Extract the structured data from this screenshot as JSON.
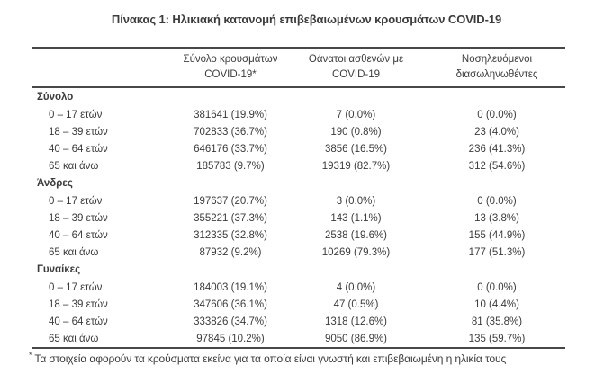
{
  "title": "Πίνακας 1: Ηλικιακή κατανομή επιβεβαιωμένων κρουσμάτων COVID-19",
  "table": {
    "columns": [
      {
        "line1": "",
        "line2": ""
      },
      {
        "line1": "Σύνολο κρουσμάτων",
        "line2": "COVID-19*"
      },
      {
        "line1": "Θάνατοι ασθενών με",
        "line2": "COVID-19"
      },
      {
        "line1": "Νοσηλευόμενοι",
        "line2": "διασωληνωθέντες"
      }
    ],
    "sections": [
      {
        "label": "Σύνολο",
        "rows": [
          {
            "age": "0 – 17 ετών",
            "cases": "381641 (19.9%)",
            "deaths": "7 (0.0%)",
            "intubated": "0 (0.0%)"
          },
          {
            "age": "18 – 39 ετών",
            "cases": "702833 (36.7%)",
            "deaths": "190 (0.8%)",
            "intubated": "23 (4.0%)"
          },
          {
            "age": "40 – 64 ετών",
            "cases": "646176 (33.7%)",
            "deaths": "3856 (16.5%)",
            "intubated": "236 (41.3%)"
          },
          {
            "age": "65 και άνω",
            "cases": "185783 (9.7%)",
            "deaths": "19319 (82.7%)",
            "intubated": "312 (54.6%)"
          }
        ]
      },
      {
        "label": "Άνδρες",
        "rows": [
          {
            "age": "0 – 17 ετών",
            "cases": "197637 (20.7%)",
            "deaths": "3 (0.0%)",
            "intubated": "0 (0.0%)"
          },
          {
            "age": "18 – 39 ετών",
            "cases": "355221 (37.3%)",
            "deaths": "143 (1.1%)",
            "intubated": "13 (3.8%)"
          },
          {
            "age": "40 – 64 ετών",
            "cases": "312335 (32.8%)",
            "deaths": "2538 (19.6%)",
            "intubated": "155 (44.9%)"
          },
          {
            "age": "65 και άνω",
            "cases": "87932 (9.2%)",
            "deaths": "10269 (79.3%)",
            "intubated": "177 (51.3%)"
          }
        ]
      },
      {
        "label": "Γυναίκες",
        "rows": [
          {
            "age": "0 – 17 ετών",
            "cases": "184003 (19.1%)",
            "deaths": "4 (0.0%)",
            "intubated": "0 (0.0%)"
          },
          {
            "age": "18 – 39 ετών",
            "cases": "347606 (36.1%)",
            "deaths": "47 (0.5%)",
            "intubated": "10 (4.4%)"
          },
          {
            "age": "40 – 64 ετών",
            "cases": "333826 (34.7%)",
            "deaths": "1318 (12.6%)",
            "intubated": "81 (35.8%)"
          },
          {
            "age": "65 και άνω",
            "cases": "97845 (10.2%)",
            "deaths": "9050 (86.9%)",
            "intubated": "135 (59.7%)"
          }
        ]
      }
    ]
  },
  "footnote": {
    "marker": "*",
    "text": "Τα στοιχεία αφορούν τα κρούσματα εκείνα για τα οποία είναι γνωστή και επιβεβαιωμένη η ηλικία τους"
  },
  "colors": {
    "text": "#3b3b3d",
    "rule": "#48484a",
    "background": "#ffffff"
  }
}
